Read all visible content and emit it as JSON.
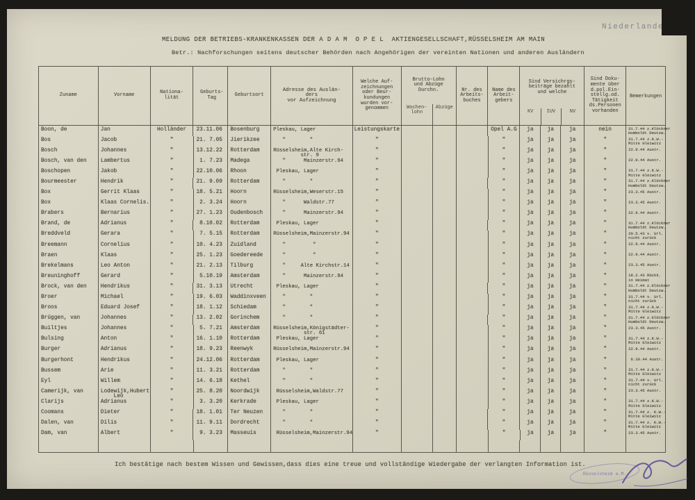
{
  "photo": {
    "stamp_top_right": "Niederlande 2"
  },
  "header": {
    "title": "MELDUNG DER BETRIEBS-KRANKENKASSEN DER A D A M  O P E L  AKTIENGESELLSCHAFT,RÜSSELSHEIM AM MAIN",
    "subject": "Betr.: Nachforschungen seitens deutscher Behörden nach Angehörigen der vereinten Nationen und anderen Ausländern"
  },
  "table": {
    "columns": {
      "zuname": "Zuname",
      "vorname": "Vorname",
      "nat": "Nationa-\nlität",
      "geb": "Geburts-\nTag",
      "ort": "Geburtsort",
      "adresse": "Adresse des Auslän-\nders\nvor Aufzeichnung",
      "aufz": "Welche Auf-\nzeichnungen\noder Beur-\nkundungen\nwurden vor-\ngenommen",
      "lohn_main": "Brutto-Lohn\nund Abzüge\nDurchn.",
      "lohn_sub1": "Wochen-\nlohn",
      "lohn_sub2": "Abzüge",
      "buch": "Nr. des\nArbeits-\nbuches",
      "arbeitgeber": "Name des\nArbeit-\ngebers",
      "vers_main": "Sind Versichrgs-\nbeiträge bezahlt\nund welche",
      "kv": "KV",
      "iuv": "IUV",
      "nv": "NV",
      "dok": "Sind Doku-\nmente über\nd.pol.Ein-\nstellg.od.\nTätigkeit\nds.Personen\nvorhanden",
      "bem": "Bemerkungen"
    },
    "rows": [
      {
        "zuname": "Boon, de",
        "vorname": "Jan",
        "nat": "Holländer",
        "geb": "23.11.06",
        "ort": "Bosenburg",
        "adresse": "Pleskau, Lager",
        "aufz": "Leistungskarte",
        "lohn": "",
        "abz": "",
        "buch": "",
        "arbeitgeber": "Opel A.G",
        "kv": "ja",
        "iuv": "ja",
        "nv": "ja",
        "dok": "nein",
        "bem": "31.7.44 z.Klöckner\nHumboldt Deutzw."
      },
      {
        "zuname": "Bos",
        "vorname": "Jacob",
        "nat": "\"",
        "geb": "21. 7.05",
        "ort": "Jierikzee",
        "adresse": "   \"        \"",
        "aufz": "\"",
        "lohn": "",
        "abz": "",
        "buch": "",
        "arbeitgeber": "\"",
        "kv": "ja",
        "iuv": "ja",
        "nv": "ja",
        "dok": "\"",
        "bem": "31.7.44 z.K.W.-\nMitte Gleiwitz"
      },
      {
        "zuname": "Bosch",
        "vorname": "Johannes",
        "nat": "\"",
        "geb": "13.12.22",
        "ort": "Rotterdam",
        "adresse": "Rüsselsheim,Alte Kirch-\n         str. 9",
        "aufz": "\"",
        "lohn": "",
        "abz": "",
        "buch": "",
        "arbeitgeber": "\"",
        "kv": "ja",
        "iuv": "ja",
        "nv": "ja",
        "dok": "\"",
        "bem": "22.9.44 Austr."
      },
      {
        "zuname": "Bosch, van den",
        "vorname": "Lambertus",
        "nat": "\"",
        "geb": " 1. 7.23",
        "ort": "Madega",
        "adresse": "   \"      Mainzerstr.94",
        "aufz": "\"",
        "lohn": "",
        "abz": "",
        "buch": "",
        "arbeitgeber": "\"",
        "kv": "ja",
        "iuv": "ja",
        "nv": "ja",
        "dok": "\"",
        "bem": "22.9.44 Austr."
      },
      {
        "zuname": "Boschopen",
        "vorname": "Jakob",
        "nat": "\"",
        "geb": "22.10.06",
        "ort": "Rhoon",
        "adresse": " Pleskau, Lager",
        "aufz": "\"",
        "lohn": "",
        "abz": "",
        "buch": "",
        "arbeitgeber": "\"",
        "kv": "ja",
        "iuv": "ja",
        "nv": "ja",
        "dok": "\"",
        "bem": "31.7.44 z.K.W.-\nMitte Gleiwitz"
      },
      {
        "zuname": "Bourmeester",
        "vorname": "Hendrik",
        "nat": "\"",
        "geb": "21. 9.09",
        "ort": "Rotterdam",
        "adresse": "   \"        \"",
        "aufz": "\"",
        "lohn": "",
        "abz": "",
        "buch": "",
        "arbeitgeber": "\"",
        "kv": "ja",
        "iuv": "ja",
        "nv": "ja",
        "dok": "\"",
        "bem": "31.7.44 z.Klöckner\nHumboldt Deutzw."
      },
      {
        "zuname": "Box",
        "vorname": "Gerrit Klaas",
        "nat": "\"",
        "geb": "18. 5.21",
        "ort": "Hoorn",
        "adresse": "Rüsselsheim,Weserstr.15",
        "aufz": "\"",
        "lohn": "",
        "abz": "",
        "buch": "",
        "arbeitgeber": "\"",
        "kv": "ja",
        "iuv": "ja",
        "nv": "ja",
        "dok": "\"",
        "bem": "23.3.45 Austr."
      },
      {
        "zuname": "Box",
        "vorname": "Klaas Cornelis.",
        "nat": "\"",
        "geb": " 2. 3.24",
        "ort": "Hoorn",
        "adresse": "   \"      Waldstr.77",
        "aufz": "\"",
        "lohn": "",
        "abz": "",
        "buch": "",
        "arbeitgeber": "\"",
        "kv": "ja",
        "iuv": "ja",
        "nv": "ja",
        "dok": "\"",
        "bem": "23.3.45 Austr."
      },
      {
        "zuname": "Brabers",
        "vorname": "Bernarius",
        "nat": "\"",
        "geb": "27. 1.23",
        "ort": "Oudenbosch",
        "adresse": "   \"      Mainzerstr.94",
        "aufz": "\"",
        "lohn": "",
        "abz": "",
        "buch": "",
        "arbeitgeber": "\"",
        "kv": "ja",
        "iuv": "ja",
        "nv": "ja",
        "dok": "\"",
        "bem": "22.9.44 Austr."
      },
      {
        "zuname": "Brand, de",
        "vorname": "Adrianus",
        "nat": "\"",
        "geb": " 8.10.02",
        "ort": "Rotterdam",
        "adresse": " Pleskau, Lager",
        "aufz": "\"",
        "lohn": "",
        "abz": "",
        "buch": "",
        "arbeitgeber": "\"",
        "kv": "ja",
        "iuv": "ja",
        "nv": "ja",
        "dok": "\"",
        "bem": "31.7.44 z.Klöckner\nHumboldt Deutzw."
      },
      {
        "zuname": "Breddveld",
        "vorname": "Gerara",
        "nat": "\"",
        "geb": " 7. 5.15",
        "ort": "Rotterdam",
        "adresse": "Rüsselsheim,Mainzerstr.94",
        "aufz": "\"",
        "lohn": "",
        "abz": "",
        "buch": "",
        "arbeitgeber": "\"",
        "kv": "ja",
        "iuv": "ja",
        "nv": "ja",
        "dok": "\"",
        "bem": "20.5.43 v. Url.\nnicht zurück"
      },
      {
        "zuname": "Breemann",
        "vorname": "Cornelius",
        "nat": "\"",
        "geb": "10. 4.23",
        "ort": "Zuidland",
        "adresse": "   \"         \"",
        "aufz": "\"",
        "lohn": "",
        "abz": "",
        "buch": "",
        "arbeitgeber": "\"",
        "kv": "ja",
        "iuv": "ja",
        "nv": "ja",
        "dok": "\"",
        "bem": "22.9.44 Austr."
      },
      {
        "zuname": "Braen",
        "vorname": "Klaas",
        "nat": "\"",
        "geb": "25. 1.23",
        "ort": "Goedereede",
        "adresse": "   \"         \"",
        "aufz": "\"",
        "lohn": "",
        "abz": "",
        "buch": "",
        "arbeitgeber": "\"",
        "kv": "ja",
        "iuv": "ja",
        "nv": "ja",
        "dok": "\"",
        "bem": "22.9.44 Austr."
      },
      {
        "zuname": "Brekelmans",
        "vorname": "Leo Anton",
        "nat": "\"",
        "geb": "21. 2.13",
        "ort": "Tilburg",
        "adresse": "   \"     Alte Kirchstr.14",
        "aufz": "\"",
        "lohn": "",
        "abz": "",
        "buch": "",
        "arbeitgeber": "\"",
        "kv": "ja",
        "iuv": "ja",
        "nv": "ja",
        "dok": "\"",
        "bem": "23.3.45 Austr."
      },
      {
        "zuname": "Breuninghoff",
        "vorname": "Gerard",
        "nat": "\"",
        "geb": " 5.10.19",
        "ort": "Amsterdam",
        "adresse": "   \"      Mainzerstr.94",
        "aufz": "\"",
        "lohn": "",
        "abz": "",
        "buch": "",
        "arbeitgeber": "\"",
        "kv": "ja",
        "iuv": "ja",
        "nv": "ja",
        "dok": "\"",
        "bem": "18.2.43 Rückk.\nin Heimat"
      },
      {
        "zuname": "Brock, van den",
        "vorname": "Hendrikus",
        "nat": "\"",
        "geb": "31. 3.13",
        "ort": "Utrecht",
        "adresse": " Pleskau, Lager",
        "aufz": "\"",
        "lohn": "",
        "abz": "",
        "buch": "",
        "arbeitgeber": "\"",
        "kv": "ja",
        "iuv": "ja",
        "nv": "ja",
        "dok": "\"",
        "bem": "31.7.44 z.Klöckner\nHumboldt Deutzw."
      },
      {
        "zuname": "Broer",
        "vorname": "Michael",
        "nat": "\"",
        "geb": "19. 6.03",
        "ort": "Waddinxveen",
        "adresse": "   \"        \"",
        "aufz": "\"",
        "lohn": "",
        "abz": "",
        "buch": "",
        "arbeitgeber": "\"",
        "kv": "ja",
        "iuv": "ja",
        "nv": "ja",
        "dok": "\"",
        "bem": "31.7.44 v. Url.\nnicht zurück"
      },
      {
        "zuname": "Broos",
        "vorname": "Eduard Josef",
        "nat": "\"",
        "geb": "18. 1.12",
        "ort": "Schiedam",
        "adresse": "   \"        \"",
        "aufz": "\"",
        "lohn": "",
        "abz": "",
        "buch": "",
        "arbeitgeber": "\"",
        "kv": "ja",
        "iuv": "ja",
        "nv": "ja",
        "dok": "\"",
        "bem": "31.7.44 z.K.W.-\nMitte Gleiwitz"
      },
      {
        "zuname": "Brüggen, van",
        "vorname": "Johannes",
        "nat": "\"",
        "geb": "13. 2.02",
        "ort": "Gorinchem",
        "adresse": "   \"        \"",
        "aufz": "\"",
        "lohn": "",
        "abz": "",
        "buch": "",
        "arbeitgeber": "\"",
        "kv": "ja",
        "iuv": "ja",
        "nv": "ja",
        "dok": "\"",
        "bem": "31.7.44 z.Klöckner\nHumboldt Deutzw."
      },
      {
        "zuname": "Builtjes",
        "vorname": "Johannes",
        "nat": "\"",
        "geb": " 5. 7.21",
        "ort": "Amsterdam",
        "adresse": "Rüsselsheim,Königstädter-\n          str. 61",
        "aufz": "\"",
        "lohn": "",
        "abz": "",
        "buch": "",
        "arbeitgeber": "\"",
        "kv": "ja",
        "iuv": "ja",
        "nv": "ja",
        "dok": "\"",
        "bem": "23.3.45 Austr."
      },
      {
        "zuname": "Bulsing",
        "vorname": "Anton",
        "nat": "\"",
        "geb": "16. 1.10",
        "ort": "Rotterdam",
        "adresse": " Pleskau, Lager",
        "aufz": "\"",
        "lohn": "",
        "abz": "",
        "buch": "",
        "arbeitgeber": "\"",
        "kv": "ja",
        "iuv": "ja",
        "nv": "ja",
        "dok": "\"",
        "bem": "31.7.44 z.K.W.-\nMitte Gleiwitz"
      },
      {
        "zuname": "Burger",
        "vorname": "Adrianus",
        "nat": "\"",
        "geb": "18. 9.23",
        "ort": "Reenwyk",
        "adresse": "Rüsselsheim,Mainzerstr.94",
        "aufz": "\"",
        "lohn": "",
        "abz": "",
        "buch": "",
        "arbeitgeber": "\"",
        "kv": "ja",
        "iuv": "ja",
        "nv": "ja",
        "dok": "\"",
        "bem": "22.9.44 Austr."
      },
      {
        "zuname": "Burgerhont",
        "vorname": "Hendrikus",
        "nat": "\"",
        "geb": "24.12.06",
        "ort": "Rotterdam",
        "adresse": " Pleskau, Lager",
        "aufz": "\"",
        "lohn": "",
        "abz": "",
        "buch": "",
        "arbeitgeber": "\"",
        "kv": "ja",
        "iuv": "ja",
        "nv": "ja",
        "dok": "\"",
        "bem": " 6.10.44 Austr."
      },
      {
        "zuname": "Bussem",
        "vorname": "Arie",
        "nat": "\"",
        "geb": "11. 3.21",
        "ort": "Rotterdam",
        "adresse": "   \"        \"",
        "aufz": "\"",
        "lohn": "",
        "abz": "",
        "buch": "",
        "arbeitgeber": "\"",
        "kv": "ja",
        "iuv": "ja",
        "nv": "ja",
        "dok": "\"",
        "bem": "31.7.44 z.K.W.-\nMitte Gleiwitz"
      },
      {
        "zuname": "Eyl",
        "vorname": "Willem",
        "nat": "\"",
        "geb": "14. 6.18",
        "ort": "Kethel",
        "adresse": "   \"        \"",
        "aufz": "\"",
        "lohn": "",
        "abz": "",
        "buch": "",
        "arbeitgeber": "\"",
        "kv": "ja",
        "iuv": "ja",
        "nv": "ja",
        "dok": "\"",
        "bem": "31.7.44 v. Url.\nnicht zurück"
      },
      {
        "zuname": "Camerijk, van",
        "vorname": "Lodewijk,Hubert\n    Leo",
        "nat": "\"",
        "geb": "25. 8.20",
        "ort": "Noordwijk",
        "adresse": " Rüsselsheim,Waldstr.77",
        "aufz": "\"",
        "lohn": "",
        "abz": "",
        "buch": "",
        "arbeitgeber": "\"",
        "kv": "ja",
        "iuv": "ja",
        "nv": "ja",
        "dok": "\"",
        "bem": "23.3.45 Austr."
      },
      {
        "zuname": "Clarijs",
        "vorname": "Adrianus",
        "nat": "\"",
        "geb": " 3. 3.20",
        "ort": "Kerkrade",
        "adresse": " Pleskau, Lager",
        "aufz": "\"",
        "lohn": "",
        "abz": "",
        "buch": "",
        "arbeitgeber": "\"",
        "kv": "ja",
        "iuv": "ja",
        "nv": "ja",
        "dok": "\"",
        "bem": "31.7.44 z.K.W.-\nMitte Gleiwitz"
      },
      {
        "zuname": "Coomans",
        "vorname": "Dieter",
        "nat": "\"",
        "geb": "18. 1.01",
        "ort": "Ter Neuzen",
        "adresse": "   \"        \"",
        "aufz": "\"",
        "lohn": "",
        "abz": "",
        "buch": "",
        "arbeitgeber": "\"",
        "kv": "ja",
        "iuv": "ja",
        "nv": "ja",
        "dok": "\"",
        "bem": "31.7.44 z. K.W.-\nMitte Gleiwitz"
      },
      {
        "zuname": "Dalen, van",
        "vorname": "Dilis",
        "nat": "\"",
        "geb": "11. 9.11",
        "ort": "Dordrecht",
        "adresse": "   \"        \"",
        "aufz": "\"",
        "lohn": "",
        "abz": "",
        "buch": "",
        "arbeitgeber": "\"",
        "kv": "ja",
        "iuv": "ja",
        "nv": "ja",
        "dok": "\"",
        "bem": "31.7.44 z. K.W.-\nMitte Gleiwitz"
      },
      {
        "zuname": "Dam, van",
        "vorname": "Albert",
        "nat": "\"",
        "geb": " 9. 3.23",
        "ort": "Masseuis",
        "adresse": " Rüsselsheim,Mainzerstr.94",
        "aufz": "\"",
        "lohn": "",
        "abz": "",
        "buch": "",
        "arbeitgeber": "\"",
        "kv": "ja",
        "iuv": "ja",
        "nv": "ja",
        "dok": "\"",
        "bem": "23.3.45 Austr."
      }
    ]
  },
  "footer": {
    "certification": "Ich bestätige nach bestem Wissen und Gewissen,dass dies eine treue und vollständige Wiedergabe der verlangten Information ist.",
    "stamp": "Rüsselsheim a.M."
  }
}
